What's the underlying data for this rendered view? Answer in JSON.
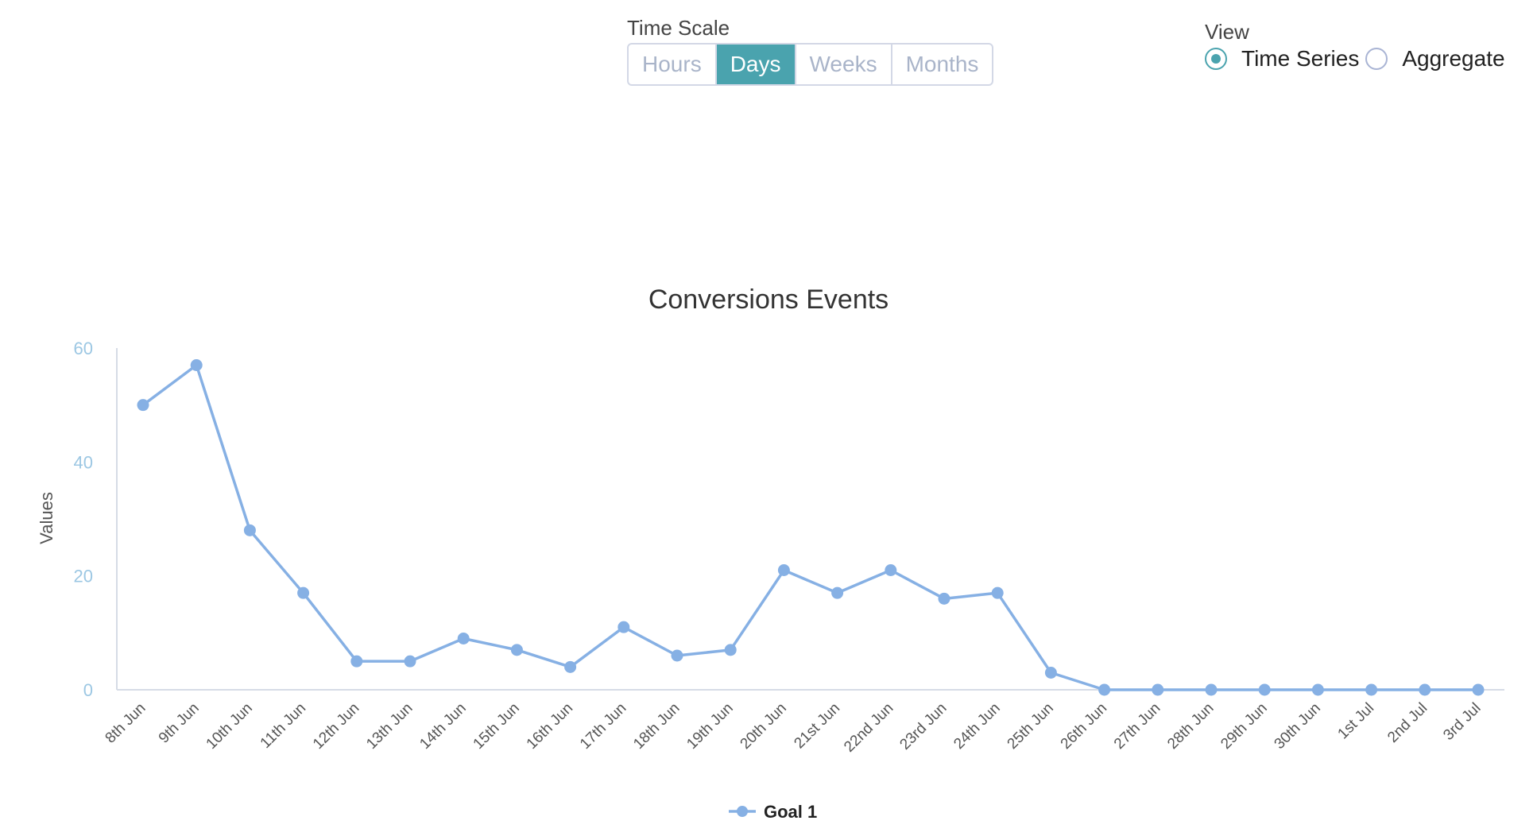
{
  "time_scale": {
    "title": "Time Scale",
    "options": [
      "Hours",
      "Days",
      "Weeks",
      "Months"
    ],
    "selected": "Days"
  },
  "view": {
    "title": "View",
    "options": [
      "Time Series",
      "Aggregate"
    ],
    "selected": "Time Series"
  },
  "colors": {
    "accent": "#4aa3ae",
    "series": "#86b0e4",
    "axis_ticks": "#9cc7e3"
  },
  "chart_data": {
    "type": "line",
    "title": "Conversions Events",
    "ylabel": "Values",
    "xlabel": "",
    "ylim": [
      0,
      60
    ],
    "yticks": [
      0,
      20,
      40,
      60
    ],
    "grid": false,
    "legend_position": "bottom",
    "categories": [
      "8th Jun",
      "9th Jun",
      "10th Jun",
      "11th Jun",
      "12th Jun",
      "13th Jun",
      "14th Jun",
      "15th Jun",
      "16th Jun",
      "17th Jun",
      "18th Jun",
      "19th Jun",
      "20th Jun",
      "21st Jun",
      "22nd Jun",
      "23rd Jun",
      "24th Jun",
      "25th Jun",
      "26th Jun",
      "27th Jun",
      "28th Jun",
      "29th Jun",
      "30th Jun",
      "1st Jul",
      "2nd Jul",
      "3rd Jul"
    ],
    "series": [
      {
        "name": "Goal 1",
        "values": [
          50,
          57,
          28,
          17,
          5,
          5,
          9,
          7,
          4,
          11,
          6,
          7,
          21,
          17,
          21,
          16,
          17,
          3,
          0,
          0,
          0,
          0,
          0,
          0,
          0,
          0
        ]
      }
    ]
  }
}
